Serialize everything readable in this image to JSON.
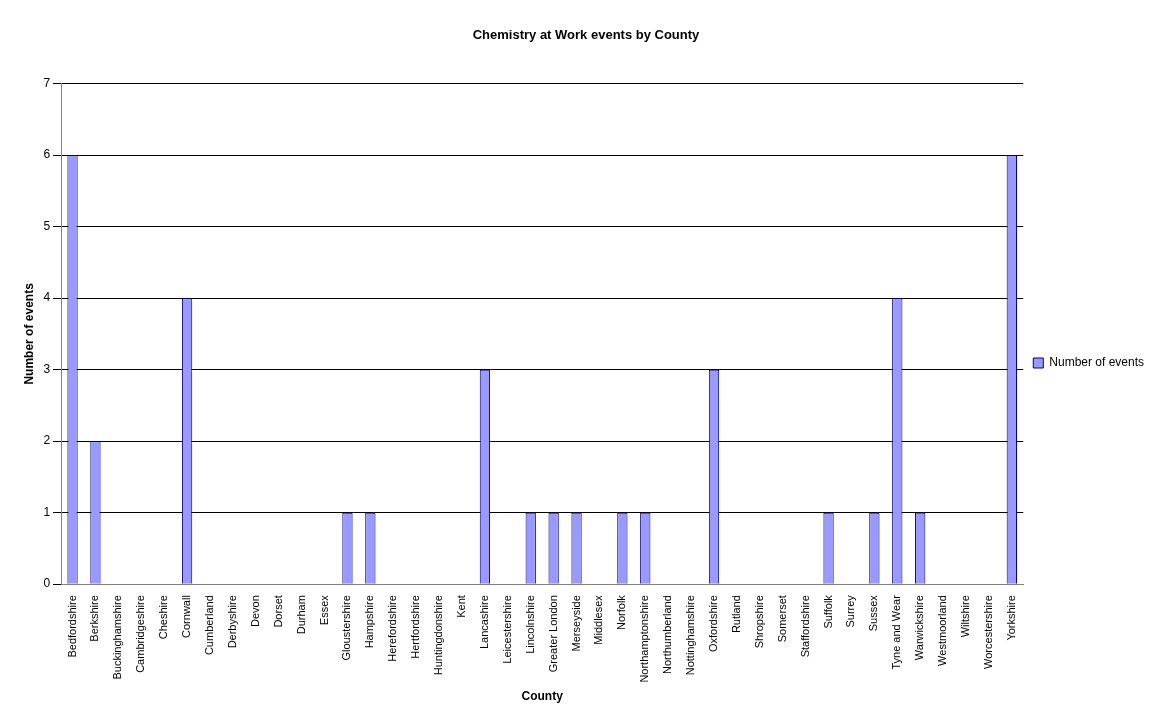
{
  "chart_data": {
    "type": "bar",
    "title": "Chemistry at Work events by County",
    "xlabel": "County",
    "ylabel": "Number of events",
    "categories": [
      "Bedfordshire",
      "Berkshire",
      "Buckinghamshire",
      "Cambridgeshire",
      "Cheshire",
      "Cornwall",
      "Cumberland",
      "Derbyshire",
      "Devon",
      "Dorset",
      "Durham",
      "Essex",
      "Gloustershire",
      "Hampshire",
      "Herefordshire",
      "Hertfordshire",
      "Huntingdonshire",
      "Kent",
      "Lancashire",
      "Leicestershire",
      "Lincolnshire",
      "Greater London",
      "Merseyside",
      "Middlesex",
      "Norfolk",
      "Northamptonshire",
      "Northumberland",
      "Nottinghamshire",
      "Oxfordshire",
      "Rutland",
      "Shropshire",
      "Somerset",
      "Staffordshire",
      "Suffolk",
      "Surrey",
      "Sussex",
      "Tyne and Wear",
      "Warwickshire",
      "Westmoorland",
      "Wiltshire",
      "Worcestershire",
      "Yorkshire"
    ],
    "series": [
      {
        "name": "Number of events",
        "color": "#9999ff",
        "values": [
          6,
          2,
          0,
          0,
          0,
          4,
          0,
          0,
          0,
          0,
          0,
          0,
          1,
          1,
          0,
          0,
          0,
          0,
          3,
          0,
          1,
          1,
          1,
          0,
          1,
          1,
          0,
          0,
          3,
          0,
          0,
          0,
          0,
          1,
          0,
          1,
          4,
          1,
          0,
          0,
          0,
          6
        ]
      }
    ],
    "ylim": [
      0,
      7
    ],
    "yticks": [
      0,
      1,
      2,
      3,
      4,
      5,
      6,
      7
    ],
    "grid": "y",
    "legend": "right"
  }
}
